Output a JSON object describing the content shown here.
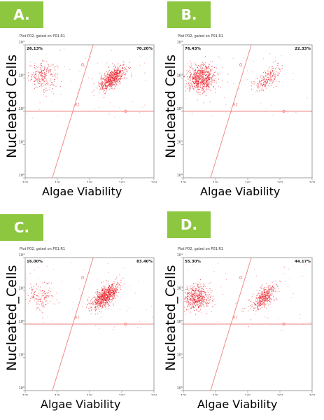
{
  "chart_data": [
    {
      "type": "scatter",
      "panel_label": "A.",
      "plot_title": "Plot P02, gated on P01.R1",
      "gate_label": "R2",
      "quadrant_upper_left": "26.13%",
      "quadrant_upper_right": "70.20%",
      "xlabel": "Algae Viability",
      "ylabel": "Nucleated Cells",
      "xscale": "log",
      "yscale": "log",
      "xlim": [
        1,
        10000
      ],
      "ylim": [
        1,
        10000
      ],
      "x_tick_labels": [
        "10⁰",
        "10¹",
        "10²",
        "10³",
        "10⁴"
      ],
      "y_tick_labels": [
        "10⁰",
        "10¹",
        "10²",
        "10³",
        "10⁴"
      ],
      "point_color": "#e8202a",
      "clusters": [
        {
          "x_center": 3.5,
          "y_center": 1200,
          "fraction": 0.2613
        },
        {
          "x_center": 500,
          "y_center": 1000,
          "fraction": 0.702
        }
      ]
    },
    {
      "type": "scatter",
      "panel_label": "B.",
      "plot_title": "Plot P02, gated on P01.R1",
      "gate_label": "R2",
      "quadrant_upper_left": "76.43%",
      "quadrant_upper_right": "22.33%",
      "xlabel": "Algae Viability",
      "ylabel": "Nucleated Cells",
      "xscale": "log",
      "yscale": "log",
      "xlim": [
        1,
        10000
      ],
      "ylim": [
        1,
        10000
      ],
      "x_tick_labels": [
        "10⁰",
        "10¹",
        "10²",
        "10³",
        "10⁴"
      ],
      "y_tick_labels": [
        "10⁰",
        "10¹",
        "10²",
        "10³",
        "10⁴"
      ],
      "point_color": "#e8202a",
      "clusters": [
        {
          "x_center": 3.5,
          "y_center": 1000,
          "fraction": 0.7643
        },
        {
          "x_center": 400,
          "y_center": 1000,
          "fraction": 0.2233
        }
      ]
    },
    {
      "type": "scatter",
      "panel_label": "C.",
      "plot_title": "Plot P02, gated on P01.R1",
      "gate_label": "R2",
      "quadrant_upper_left": "16.00%",
      "quadrant_upper_right": "83.40%",
      "xlabel": "Algae Viability",
      "ylabel": "Nucleated_Cells",
      "xscale": "log",
      "yscale": "log",
      "xlim": [
        1,
        10000
      ],
      "ylim": [
        1,
        10000
      ],
      "x_tick_labels": [
        "10⁰",
        "10¹",
        "10²",
        "10³",
        "10⁴"
      ],
      "y_tick_labels": [
        "10⁰",
        "10¹",
        "10²",
        "10³",
        "10⁴"
      ],
      "point_color": "#e8202a",
      "clusters": [
        {
          "x_center": 3,
          "y_center": 700,
          "fraction": 0.16
        },
        {
          "x_center": 300,
          "y_center": 700,
          "fraction": 0.834
        }
      ]
    },
    {
      "type": "scatter",
      "panel_label": "D.",
      "plot_title": "Plot P02, gated on P01.R1",
      "gate_label": "R2",
      "quadrant_upper_left": "55.30%",
      "quadrant_upper_right": "44.17%",
      "xlabel": "Algae Viability",
      "ylabel": "Nucleated_Cells",
      "xscale": "log",
      "yscale": "log",
      "xlim": [
        1,
        10000
      ],
      "ylim": [
        1,
        10000
      ],
      "x_tick_labels": [
        "10⁰",
        "10¹",
        "10²",
        "10³",
        "10⁴"
      ],
      "y_tick_labels": [
        "10⁰",
        "10¹",
        "10²",
        "10³",
        "10⁴"
      ],
      "point_color": "#e8202a",
      "clusters": [
        {
          "x_center": 2.5,
          "y_center": 650,
          "fraction": 0.553
        },
        {
          "x_center": 300,
          "y_center": 650,
          "fraction": 0.4417
        }
      ]
    }
  ],
  "colors": {
    "badge": "#8dc63f",
    "gate_line": "#f08080",
    "points": "#e8202a"
  }
}
